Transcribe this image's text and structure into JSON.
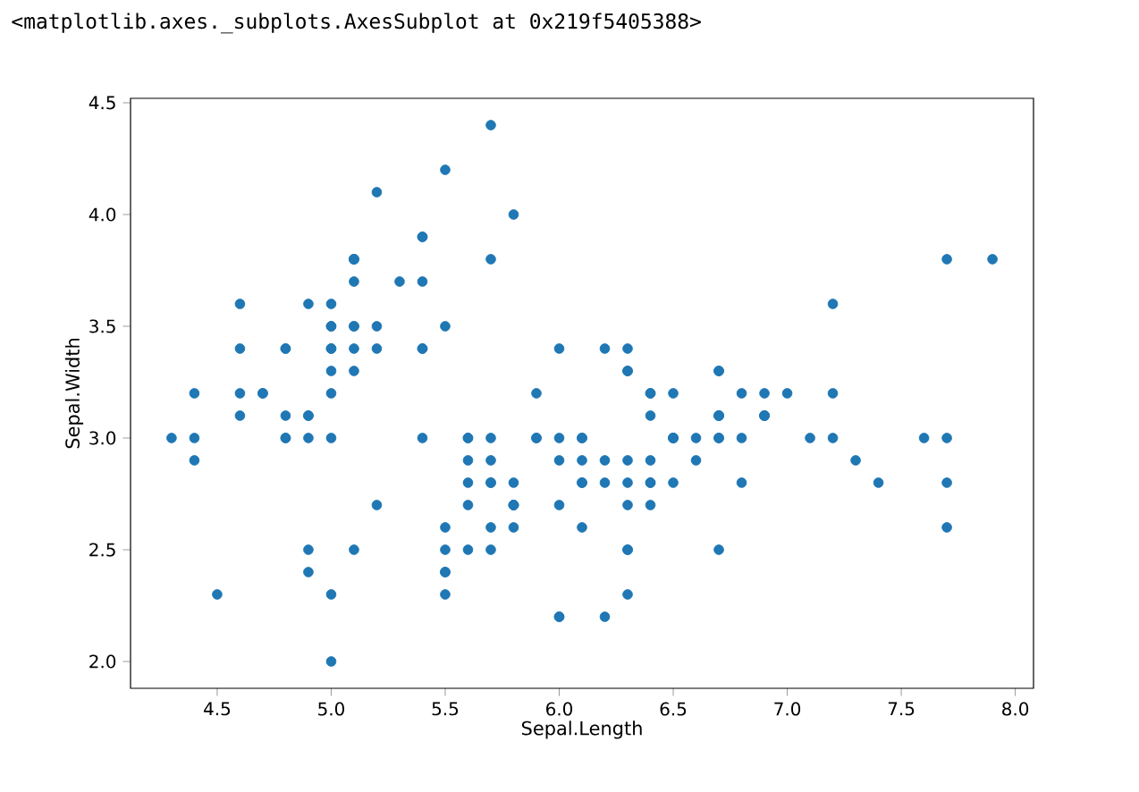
{
  "chart_data": {
    "type": "scatter",
    "xlabel": "Sepal.Length",
    "ylabel": "Sepal.Width",
    "annotations": [
      "<matplotlib.axes._subplots.AxesSubplot at 0x219f5405388>"
    ],
    "color": "#1f77b4",
    "xlim": [
      4.12,
      8.08
    ],
    "ylim": [
      1.88,
      4.52
    ],
    "xticks": [
      {
        "value": 4.5,
        "label": "4.5"
      },
      {
        "value": 5.0,
        "label": "5.0"
      },
      {
        "value": 5.5,
        "label": "5.5"
      },
      {
        "value": 6.0,
        "label": "6.0"
      },
      {
        "value": 6.5,
        "label": "6.5"
      },
      {
        "value": 7.0,
        "label": "7.0"
      },
      {
        "value": 7.5,
        "label": "7.5"
      },
      {
        "value": 8.0,
        "label": "8.0"
      }
    ],
    "yticks": [
      {
        "value": 2.0,
        "label": "2.0"
      },
      {
        "value": 2.5,
        "label": "2.5"
      },
      {
        "value": 3.0,
        "label": "3.0"
      },
      {
        "value": 3.5,
        "label": "3.5"
      },
      {
        "value": 4.0,
        "label": "4.0"
      },
      {
        "value": 4.5,
        "label": "4.5"
      }
    ],
    "x": [
      5.1,
      4.9,
      4.7,
      4.6,
      5.0,
      5.4,
      4.6,
      5.0,
      4.4,
      4.9,
      5.4,
      4.8,
      4.8,
      4.3,
      5.8,
      5.7,
      5.4,
      5.1,
      5.7,
      5.1,
      5.4,
      5.1,
      4.6,
      5.1,
      4.8,
      5.0,
      5.0,
      5.2,
      5.2,
      4.7,
      4.8,
      5.4,
      5.2,
      5.5,
      4.9,
      5.0,
      5.5,
      4.9,
      4.4,
      5.1,
      5.0,
      4.5,
      4.4,
      5.0,
      5.1,
      4.8,
      5.1,
      4.6,
      5.3,
      5.0,
      7.0,
      6.4,
      6.9,
      5.5,
      6.5,
      5.7,
      6.3,
      4.9,
      6.6,
      5.2,
      5.0,
      5.9,
      6.0,
      6.1,
      5.6,
      6.7,
      5.6,
      5.8,
      6.2,
      5.6,
      5.9,
      6.1,
      6.3,
      6.1,
      6.4,
      6.6,
      6.8,
      6.7,
      6.0,
      5.7,
      5.5,
      5.5,
      5.8,
      6.0,
      5.4,
      6.0,
      6.7,
      6.3,
      5.6,
      5.5,
      5.5,
      6.1,
      5.8,
      5.0,
      5.6,
      5.7,
      5.7,
      6.2,
      5.1,
      5.7,
      6.3,
      5.8,
      7.1,
      6.3,
      6.5,
      7.6,
      4.9,
      7.3,
      6.7,
      7.2,
      6.5,
      6.4,
      6.8,
      5.7,
      5.8,
      6.4,
      6.5,
      7.7,
      7.7,
      6.0,
      6.9,
      5.6,
      7.7,
      6.3,
      6.7,
      7.2,
      6.2,
      6.1,
      6.4,
      7.2,
      7.4,
      7.9,
      6.4,
      6.3,
      6.1,
      7.7,
      6.3,
      6.4,
      6.0,
      6.9,
      6.7,
      6.9,
      5.8,
      6.8,
      6.7,
      6.7,
      6.3,
      6.5,
      6.2,
      5.9
    ],
    "values": [
      3.5,
      3.0,
      3.2,
      3.1,
      3.6,
      3.9,
      3.4,
      3.4,
      2.9,
      3.1,
      3.7,
      3.4,
      3.0,
      3.0,
      4.0,
      4.4,
      3.9,
      3.5,
      3.8,
      3.8,
      3.4,
      3.7,
      3.6,
      3.3,
      3.4,
      3.0,
      3.4,
      3.5,
      3.4,
      3.2,
      3.1,
      3.4,
      4.1,
      4.2,
      3.1,
      3.2,
      3.5,
      3.6,
      3.0,
      3.4,
      3.5,
      2.3,
      3.2,
      3.5,
      3.8,
      3.0,
      3.8,
      3.2,
      3.7,
      3.3,
      3.2,
      3.2,
      3.1,
      2.3,
      2.8,
      2.8,
      3.3,
      2.4,
      2.9,
      2.7,
      2.0,
      3.0,
      2.2,
      2.9,
      2.9,
      3.1,
      3.0,
      2.7,
      2.2,
      2.5,
      3.2,
      2.8,
      2.5,
      2.8,
      2.9,
      3.0,
      2.8,
      3.0,
      2.9,
      2.6,
      2.4,
      2.4,
      2.7,
      2.7,
      3.0,
      3.4,
      3.1,
      2.3,
      3.0,
      2.5,
      2.6,
      3.0,
      2.6,
      2.3,
      2.7,
      3.0,
      2.9,
      2.9,
      2.5,
      2.8,
      3.3,
      2.7,
      3.0,
      2.9,
      3.0,
      3.0,
      2.5,
      2.9,
      2.5,
      3.6,
      3.2,
      2.7,
      3.0,
      2.5,
      2.8,
      3.2,
      3.0,
      3.8,
      2.6,
      2.2,
      3.2,
      2.8,
      2.8,
      2.7,
      3.3,
      3.2,
      2.8,
      3.0,
      2.8,
      3.0,
      2.8,
      3.8,
      2.8,
      2.8,
      2.6,
      3.0,
      3.4,
      3.1,
      3.0,
      3.1,
      3.1,
      3.1,
      2.7,
      3.2,
      3.3,
      3.0,
      2.5,
      3.0,
      3.4,
      3.0
    ]
  }
}
